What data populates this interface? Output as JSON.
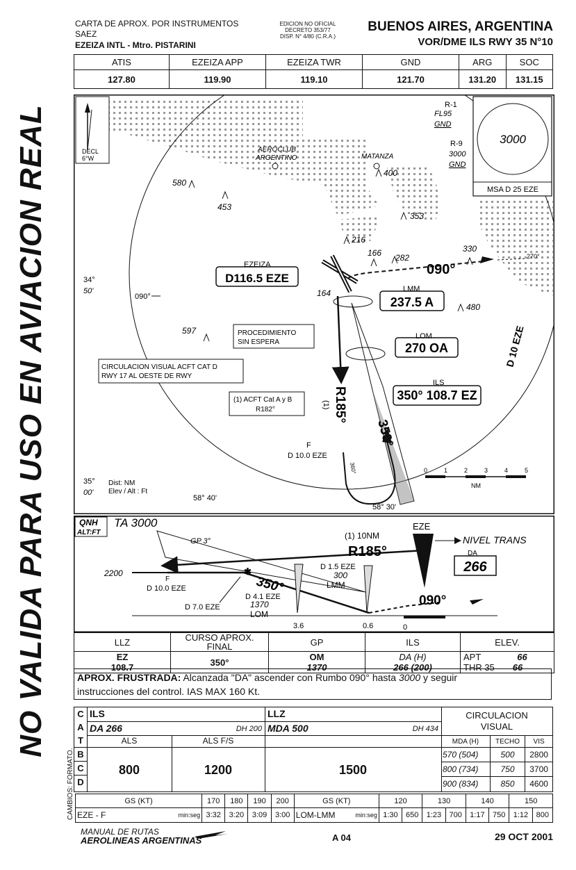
{
  "header": {
    "chart_type": "CARTA DE APROX. POR INSTRUMENTOS",
    "icao": "SAEZ",
    "airport": "EZEIZA INTL - Mtro. PISTARINI",
    "edition_1": "EDICION NO OFICIAL",
    "edition_2": "DECRETO 353/77",
    "edition_3": "DISP. N° 4/80 (C.R.A.)",
    "city": "BUENOS AIRES, ARGENTINA",
    "procedure": "VOR/DME ILS RWY 35 N°10"
  },
  "frequencies": {
    "labels": [
      "ATIS",
      "EZEIZA APP",
      "EZEIZA TWR",
      "GND",
      "ARG",
      "SOC"
    ],
    "values": [
      "127.80",
      "119.90",
      "119.10",
      "121.70",
      "131.20",
      "131.15"
    ]
  },
  "watermark": "NO VALIDA PARA USO EN AVIACION REAL",
  "plan": {
    "decl": "DECL",
    "decl_val": "6°W",
    "r1_a": "R-1",
    "r1_b": "FL95",
    "r1_c": "GND",
    "r9_a": "R-9",
    "r9_b": "3000",
    "r9_c": "GND",
    "msa_alt": "3000",
    "msa_label": "MSA  D 25 EZE",
    "aeroclub_1": "AEROCLUB",
    "aeroclub_2": "ARGENTINO",
    "matanza": "MATANZA",
    "obs_400": "400",
    "obs_580": "580",
    "obs_453": "453",
    "obs_353": "353",
    "obs_216": "216",
    "obs_166": "166",
    "obs_282": "282",
    "obs_330": "330",
    "obs_164": "164",
    "obs_480": "480",
    "obs_597": "597",
    "lat_1a": "34°",
    "lat_1b": "50'",
    "lat_2a": "35°",
    "lat_2b": "00'",
    "lon_1": "58° 40'",
    "lon_2": "58° 30'",
    "ezeiza_label": "EZEIZA",
    "ezeiza_vor": "D116.5 EZE",
    "radial_090_left": "090°",
    "radial_090": "090°",
    "radial_270": "270°",
    "lmm_label": "LMM",
    "lmm_freq": "237.5 A",
    "lom_label": "LOM",
    "lom_freq": "270 OA",
    "ils_label": "ILS",
    "ils_freq": "350° 108.7 EZ",
    "arc": "D 10 EZE",
    "proc_1": "PROCEDIMIENTO",
    "proc_2": "SIN ESPERA",
    "circ_1": "CIRCULACION VISUAL ACFT CAT D",
    "circ_2": "RWY 17 AL OESTE DE RWY",
    "acft_1": "(1) ACFT Cat A y B",
    "acft_2": "R182°",
    "r185": "R185°",
    "r185_note": "(1)",
    "course_350": "350°",
    "fix_f": "F",
    "fix_d10": "D 10.0 EZE",
    "turn_360": "360°",
    "dist_note": "Dist: NM",
    "elev_note": "Elev / Alt : Ft",
    "scale_ticks": [
      "0",
      "1",
      "2",
      "3",
      "4",
      "5"
    ],
    "scale_unit": "NM"
  },
  "profile": {
    "qnh": "QNH",
    "altft": "ALT:FT",
    "ta": "TA 3000",
    "gp": "GP 3°",
    "alt_2200": "2200",
    "f_label": "F",
    "d10": "D 10.0 EZE",
    "d7": "D 7.0 EZE",
    "course_350": "350°",
    "d41": "D 4.1 EZE",
    "alt_1370": "1370",
    "lom": "LOM",
    "d15": "D 1.5 EZE",
    "alt_300": "300",
    "lmm": "LMM",
    "note_10nm": "(1) 10NM",
    "r185": "R185°",
    "eze": "EZE",
    "nivel": "NIVEL TRANS",
    "da_label": "DA",
    "da_val": "266",
    "missed_090": "090°",
    "dist_36": "3.6",
    "dist_06": "0.6",
    "dist_0": "0"
  },
  "info": {
    "h_llz": "LLZ",
    "h_curso": "CURSO APROX.",
    "h_final": "FINAL",
    "h_gp": "GP",
    "h_ils": "ILS",
    "h_elev": "ELEV.",
    "llz_id": "EZ",
    "llz_freq": "108.7",
    "curso": "350°",
    "gp_om": "OM",
    "gp_alt": "1370",
    "ils_dah": "DA (H)",
    "ils_val": "266 (200)",
    "apt_label": "APT",
    "apt_val": "66",
    "thr_label": "THR 35",
    "thr_val": "66"
  },
  "missed": {
    "label": "APROX. FRUSTRADA:",
    "text_1": "Alcanzada \"DA\" ascender con Rumbo 090° hasta",
    "alt": "3000",
    "text_2": "y seguir",
    "text_3": "instrucciones del control. IAS MAX 160 Kt."
  },
  "minimums": {
    "cat_letters": [
      "C",
      "A",
      "T",
      "B",
      "C",
      "D"
    ],
    "ils": "ILS",
    "ils_da": "DA 266",
    "ils_dh": "DH 200",
    "llz": "LLZ",
    "mda": "MDA 500",
    "dh_434": "DH 434",
    "als": "ALS",
    "als_fs": "ALS F/S",
    "val_800": "800",
    "val_1200": "1200",
    "val_1500": "1500",
    "circ_1": "CIRCULACION",
    "circ_2": "VISUAL",
    "circ_h": [
      "MDA (H)",
      "TECHO",
      "VIS"
    ],
    "circ_rows": [
      [
        "570 (504)",
        "500",
        "2800"
      ],
      [
        "800 (734)",
        "750",
        "3700"
      ],
      [
        "900 (834)",
        "850",
        "4600"
      ]
    ],
    "cambios": "CAMBIOS: FORMATO."
  },
  "gs_table": {
    "gs_label": "GS (KT)",
    "speeds_1": [
      "170",
      "180",
      "190",
      "200"
    ],
    "route_1": "EZE - F",
    "minseg": "min:seg",
    "times_1": [
      "3:32",
      "3:20",
      "3:09",
      "3:00"
    ],
    "gs_label_2": "GS (KT)",
    "speeds_2": [
      "120",
      "130",
      "140",
      "150"
    ],
    "route_2": "LOM-LMM",
    "times_2": [
      "1:30",
      "650",
      "1:23",
      "700",
      "1:17",
      "750",
      "1:12",
      "800"
    ]
  },
  "footer": {
    "manual": "MANUAL DE RUTAS",
    "airline": "AEROLINEAS ARGENTINAS",
    "page": "A 04",
    "date": "29 OCT 2001"
  }
}
